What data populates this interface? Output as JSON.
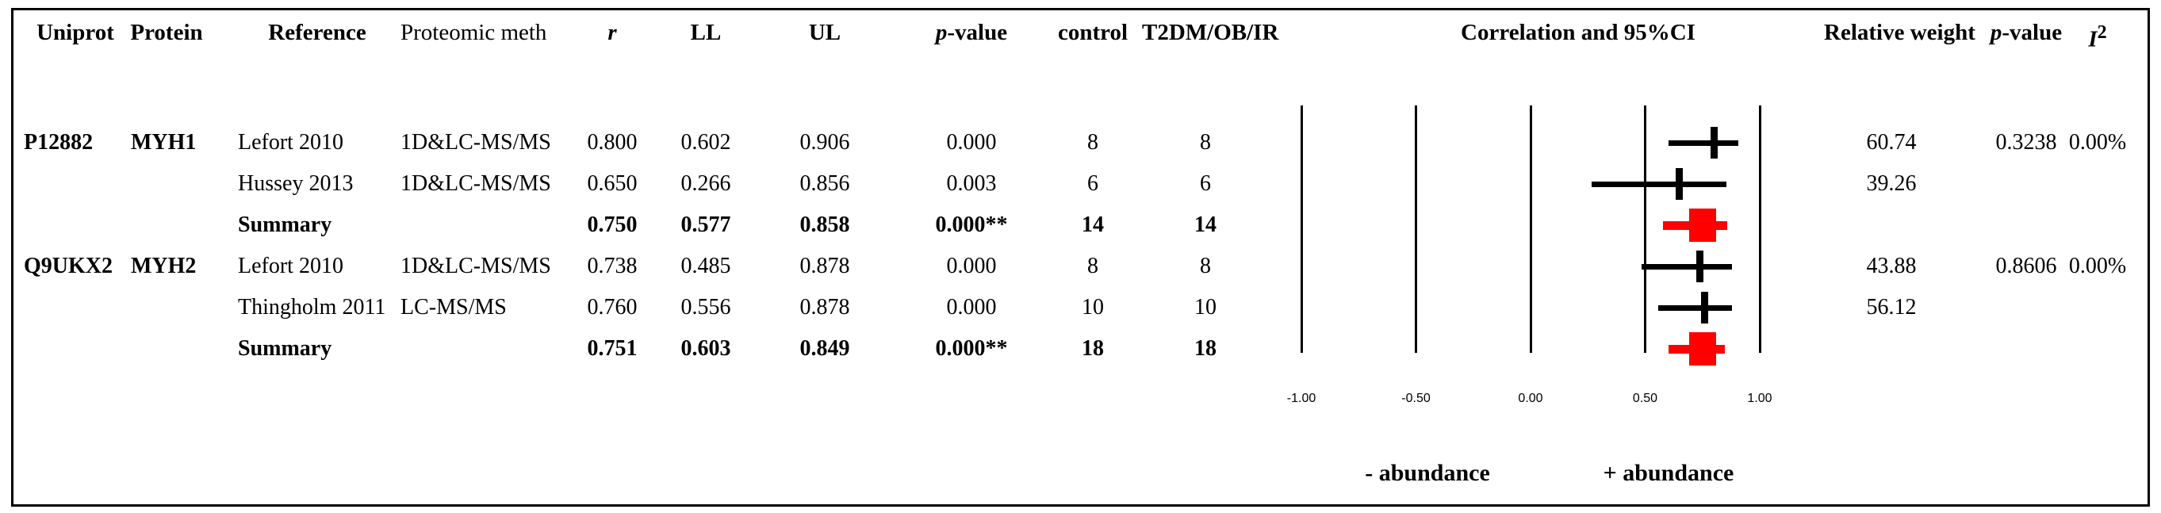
{
  "figure": {
    "frame_color": "#000000",
    "summary_color": "#ff0000",
    "marker_color": "#000000"
  },
  "table": {
    "headers": {
      "uniprot": "Uniprot",
      "protein": "Protein",
      "reference": "Reference",
      "method": "Proteomic meth",
      "r": "r",
      "ll": "LL",
      "ul": "UL",
      "p_italic": "p",
      "p_rest": "-value",
      "control": "control",
      "t2dm": "T2DM/OB/IR",
      "correlation": "Correlation and 95%CI",
      "weight": "Relative weight",
      "p2_italic": "p",
      "p2_rest": "-value",
      "i2_base": "I",
      "i2_sup": "2"
    },
    "rows": [
      {
        "uniprot": "P12882",
        "protein": "MYH1",
        "reference": "Lefort 2010",
        "method": "1D&LC-MS/MS",
        "r": "0.800",
        "ll": "0.602",
        "ul": "0.906",
        "p": "0.000",
        "control": "8",
        "t2dm": "8",
        "weight": "60.74",
        "p2": "0.3238",
        "i2": "0.00%",
        "summary": false
      },
      {
        "uniprot": "",
        "protein": "",
        "reference": "Hussey 2013",
        "method": "1D&LC-MS/MS",
        "r": "0.650",
        "ll": "0.266",
        "ul": "0.856",
        "p": "0.003",
        "control": "6",
        "t2dm": "6",
        "weight": "39.26",
        "p2": "",
        "i2": "",
        "summary": false
      },
      {
        "uniprot": "",
        "protein": "",
        "reference": "Summary",
        "method": "",
        "r": "0.750",
        "ll": "0.577",
        "ul": "0.858",
        "p": "0.000**",
        "control": "14",
        "t2dm": "14",
        "weight": "",
        "p2": "",
        "i2": "",
        "summary": true
      },
      {
        "uniprot": "Q9UKX2",
        "protein": "MYH2",
        "reference": "Lefort 2010",
        "method": "1D&LC-MS/MS",
        "r": "0.738",
        "ll": "0.485",
        "ul": "0.878",
        "p": "0.000",
        "control": "8",
        "t2dm": "8",
        "weight": "43.88",
        "p2": "0.8606",
        "i2": "0.00%",
        "summary": false
      },
      {
        "uniprot": "",
        "protein": "",
        "reference": "Thingholm 2011",
        "method": "LC-MS/MS",
        "r": "0.760",
        "ll": "0.556",
        "ul": "0.878",
        "p": "0.000",
        "control": "10",
        "t2dm": "10",
        "weight": "56.12",
        "p2": "",
        "i2": "",
        "summary": false
      },
      {
        "uniprot": "",
        "protein": "",
        "reference": "Summary",
        "method": "",
        "r": "0.751",
        "ll": "0.603",
        "ul": "0.849",
        "p": "0.000**",
        "control": "18",
        "t2dm": "18",
        "weight": "",
        "p2": "",
        "i2": "",
        "summary": true
      }
    ]
  },
  "chart_data": {
    "type": "forest",
    "title": "Correlation and 95%CI",
    "x_axis": {
      "ticks": [
        "-1.00",
        "-0.50",
        "0.00",
        "0.50",
        "1.00"
      ],
      "values": [
        -1.0,
        -0.5,
        0.0,
        0.5,
        1.0
      ],
      "range": [
        -1.0,
        1.0
      ],
      "grid": true
    },
    "studies": [
      {
        "group": "MYH1",
        "label": "Lefort 2010",
        "estimate": 0.8,
        "lower": 0.602,
        "upper": 0.906,
        "summary": false
      },
      {
        "group": "MYH1",
        "label": "Hussey 2013",
        "estimate": 0.65,
        "lower": 0.266,
        "upper": 0.856,
        "summary": false
      },
      {
        "group": "MYH1",
        "label": "Summary",
        "estimate": 0.75,
        "lower": 0.577,
        "upper": 0.858,
        "summary": true
      },
      {
        "group": "MYH2",
        "label": "Lefort 2010",
        "estimate": 0.738,
        "lower": 0.485,
        "upper": 0.878,
        "summary": false
      },
      {
        "group": "MYH2",
        "label": "Thingholm 2011",
        "estimate": 0.76,
        "lower": 0.556,
        "upper": 0.878,
        "summary": false
      },
      {
        "group": "MYH2",
        "label": "Summary",
        "estimate": 0.751,
        "lower": 0.603,
        "upper": 0.849,
        "summary": true
      }
    ],
    "negative_label": "- abundance",
    "positive_label": "+ abundance"
  }
}
